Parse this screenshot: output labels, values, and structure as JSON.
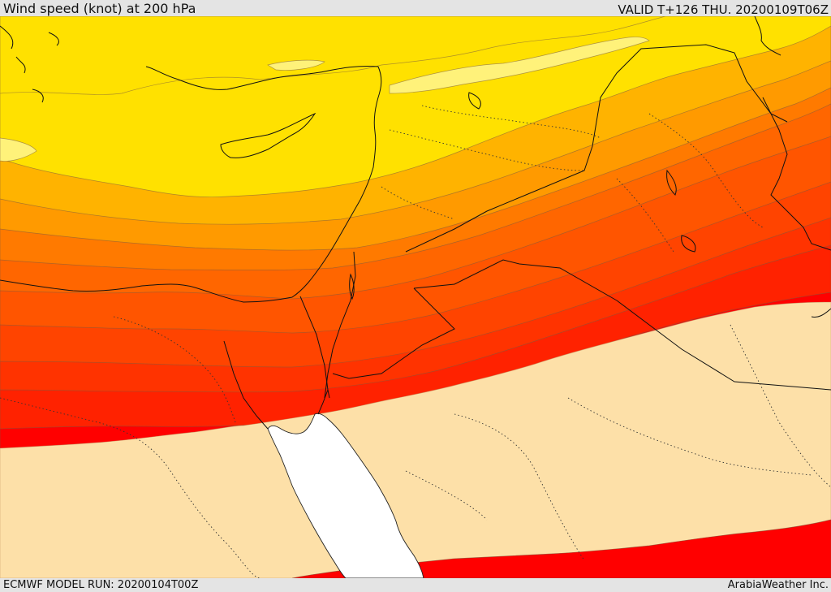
{
  "header": {
    "title": "Wind speed (knot) at 200 hPa",
    "valid": "VALID T+126 THU. 20200109T06Z"
  },
  "footer": {
    "model_run": "ECMWF MODEL RUN: 20200104T00Z",
    "credit": "ArabiaWeather Inc."
  },
  "colors": {
    "calm": "#fde0a8",
    "sea": "#ffffff",
    "band_1": "#fff27a",
    "band_2": "#ffe100",
    "band_3": "#ffb300",
    "band_4": "#ff9a00",
    "band_5": "#ff7a00",
    "band_6": "#ff5500",
    "band_7": "#ff3300",
    "band_8": "#ff1a00",
    "band_9": "#ff0000"
  }
}
